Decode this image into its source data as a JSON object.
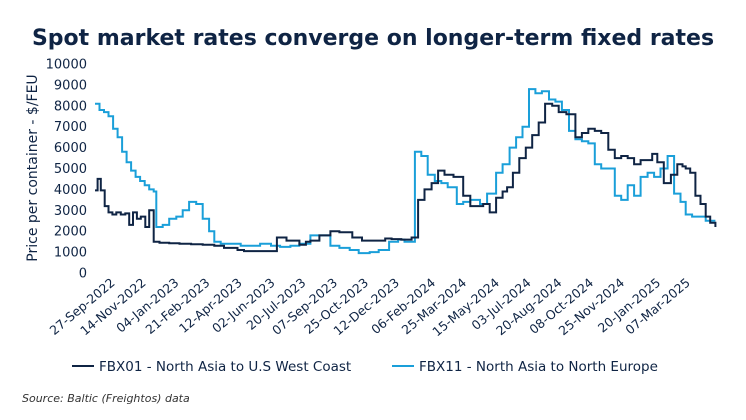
{
  "chart_data": {
    "type": "line",
    "title": "Spot market rates converge on longer-term fixed rates",
    "ylabel": "Price per container - $/FEU",
    "xlabel": "",
    "ylim": [
      0,
      10000
    ],
    "yticks": [
      0,
      1000,
      2000,
      3000,
      4000,
      5000,
      6000,
      7000,
      8000,
      9000,
      10000
    ],
    "xlim": [
      "2022-09-01",
      "2025-04-21"
    ],
    "xtick_labels": [
      "27-Sep-2022",
      "14-Nov-2022",
      "04-Jan-2023",
      "21-Feb-2023",
      "12-Apr-2023",
      "02-Jun-2023",
      "20-Jul-2023",
      "07-Sep-2023",
      "25-Oct-2023",
      "12-Dec-2023",
      "06-Feb-2024",
      "25-Mar-2024",
      "15-May-2024",
      "03-Jul-2024",
      "20-Aug-2024",
      "08-Oct-2024",
      "25-Nov-2024",
      "20-Jan-2025",
      "07-Mar-2025"
    ],
    "grid": false,
    "legend_position": "bottom",
    "series": [
      {
        "name": "FBX01 - North Asia to U.S West Coast",
        "color": "#0f2444",
        "x": [
          "2022-09-01",
          "2022-09-05",
          "2022-09-10",
          "2022-09-16",
          "2022-09-22",
          "2022-09-28",
          "2022-10-04",
          "2022-10-11",
          "2022-10-18",
          "2022-10-24",
          "2022-10-30",
          "2022-11-05",
          "2022-11-11",
          "2022-11-18",
          "2022-11-24",
          "2022-12-01",
          "2022-12-10",
          "2022-12-25",
          "2023-01-10",
          "2023-01-28",
          "2023-02-15",
          "2023-03-05",
          "2023-03-20",
          "2023-04-10",
          "2023-04-20",
          "2023-04-25",
          "2023-05-10",
          "2023-05-25",
          "2023-06-10",
          "2023-06-25",
          "2023-07-15",
          "2023-07-25",
          "2023-08-01",
          "2023-08-15",
          "2023-09-01",
          "2023-09-15",
          "2023-10-05",
          "2023-10-20",
          "2023-11-10",
          "2023-11-25",
          "2023-12-05",
          "2023-12-20",
          "2023-12-28",
          "2024-01-05",
          "2024-01-15",
          "2024-01-25",
          "2024-02-05",
          "2024-02-15",
          "2024-02-25",
          "2024-03-10",
          "2024-03-25",
          "2024-04-05",
          "2024-04-15",
          "2024-04-25",
          "2024-05-05",
          "2024-05-15",
          "2024-05-25",
          "2024-06-01",
          "2024-06-10",
          "2024-06-20",
          "2024-06-30",
          "2024-07-10",
          "2024-07-20",
          "2024-07-30",
          "2024-08-10",
          "2024-08-20",
          "2024-09-01",
          "2024-09-15",
          "2024-09-25",
          "2024-10-05",
          "2024-10-15",
          "2024-10-25",
          "2024-11-05",
          "2024-11-15",
          "2024-11-25",
          "2024-12-05",
          "2024-12-15",
          "2024-12-25",
          "2025-01-05",
          "2025-01-12",
          "2025-01-20",
          "2025-01-30",
          "2025-02-10",
          "2025-02-20",
          "2025-02-28",
          "2025-03-05",
          "2025-03-12",
          "2025-03-20",
          "2025-03-28",
          "2025-04-05",
          "2025-04-12",
          "2025-04-20"
        ],
        "values": [
          3950,
          4500,
          3950,
          3200,
          2900,
          2800,
          2900,
          2800,
          2850,
          2300,
          2900,
          2600,
          2700,
          2200,
          3000,
          1500,
          1450,
          1420,
          1400,
          1380,
          1350,
          1300,
          1200,
          1100,
          1050,
          1050,
          1050,
          1050,
          1700,
          1550,
          1350,
          1500,
          1550,
          1800,
          2000,
          1950,
          1700,
          1550,
          1550,
          1650,
          1620,
          1600,
          1600,
          1700,
          3500,
          4000,
          4300,
          4900,
          4700,
          4600,
          3700,
          3200,
          3200,
          3300,
          2900,
          3600,
          3900,
          4100,
          4800,
          5500,
          6000,
          6600,
          7200,
          8100,
          8000,
          7700,
          7600,
          6500,
          6700,
          6900,
          6800,
          6700,
          5900,
          5500,
          5600,
          5500,
          5200,
          5400,
          5400,
          5700,
          5300,
          4300,
          4700,
          5200,
          5100,
          5000,
          4800,
          3700,
          3300,
          2700,
          2400,
          2200
        ]
      },
      {
        "name": "FBX11 - North Asia to North Europe",
        "color": "#1a9fd9",
        "x": [
          "2022-09-01",
          "2022-09-08",
          "2022-09-15",
          "2022-09-22",
          "2022-09-29",
          "2022-10-06",
          "2022-10-13",
          "2022-10-20",
          "2022-10-27",
          "2022-11-03",
          "2022-11-10",
          "2022-11-17",
          "2022-11-24",
          "2022-12-01",
          "2022-12-05",
          "2022-12-15",
          "2022-12-25",
          "2023-01-05",
          "2023-01-15",
          "2023-01-25",
          "2023-02-05",
          "2023-02-15",
          "2023-02-25",
          "2023-03-05",
          "2023-03-15",
          "2023-04-01",
          "2023-04-15",
          "2023-05-01",
          "2023-05-15",
          "2023-06-01",
          "2023-06-15",
          "2023-07-01",
          "2023-07-15",
          "2023-08-01",
          "2023-08-15",
          "2023-09-01",
          "2023-09-15",
          "2023-10-01",
          "2023-10-15",
          "2023-11-01",
          "2023-11-15",
          "2023-12-01",
          "2023-12-15",
          "2023-12-25",
          "2024-01-01",
          "2024-01-10",
          "2024-01-20",
          "2024-01-30",
          "2024-02-10",
          "2024-02-20",
          "2024-03-01",
          "2024-03-15",
          "2024-03-25",
          "2024-04-05",
          "2024-04-20",
          "2024-05-01",
          "2024-05-15",
          "2024-05-25",
          "2024-06-05",
          "2024-06-15",
          "2024-06-25",
          "2024-07-05",
          "2024-07-15",
          "2024-07-25",
          "2024-08-05",
          "2024-08-15",
          "2024-08-25",
          "2024-09-05",
          "2024-09-15",
          "2024-09-25",
          "2024-10-05",
          "2024-10-15",
          "2024-10-25",
          "2024-11-05",
          "2024-11-15",
          "2024-11-25",
          "2024-12-05",
          "2024-12-15",
          "2024-12-25",
          "2025-01-05",
          "2025-01-15",
          "2025-01-25",
          "2025-02-05",
          "2025-02-15",
          "2025-02-25",
          "2025-03-05",
          "2025-03-15",
          "2025-03-25",
          "2025-04-05",
          "2025-04-15",
          "2025-04-20"
        ],
        "values": [
          8100,
          7800,
          7700,
          7500,
          6900,
          6500,
          5800,
          5300,
          4900,
          4600,
          4400,
          4200,
          4000,
          3900,
          2200,
          2300,
          2600,
          2700,
          3000,
          3400,
          3300,
          2600,
          2000,
          1500,
          1400,
          1400,
          1300,
          1300,
          1400,
          1300,
          1250,
          1300,
          1400,
          1800,
          1800,
          1300,
          1200,
          1100,
          950,
          1000,
          1100,
          1500,
          1600,
          1500,
          1500,
          5800,
          5600,
          4700,
          4400,
          4300,
          4100,
          3300,
          3400,
          3500,
          3300,
          3800,
          4800,
          5200,
          6000,
          6500,
          7000,
          8800,
          8600,
          8700,
          8300,
          8200,
          7800,
          6800,
          6400,
          6300,
          6200,
          5200,
          5000,
          5000,
          3700,
          3500,
          4200,
          3700,
          4600,
          4800,
          4600,
          5000,
          5600,
          3800,
          3400,
          2800,
          2700,
          2700,
          2500,
          2500,
          2500
        ]
      }
    ]
  },
  "source": "Source: Baltic (Freightos) data"
}
